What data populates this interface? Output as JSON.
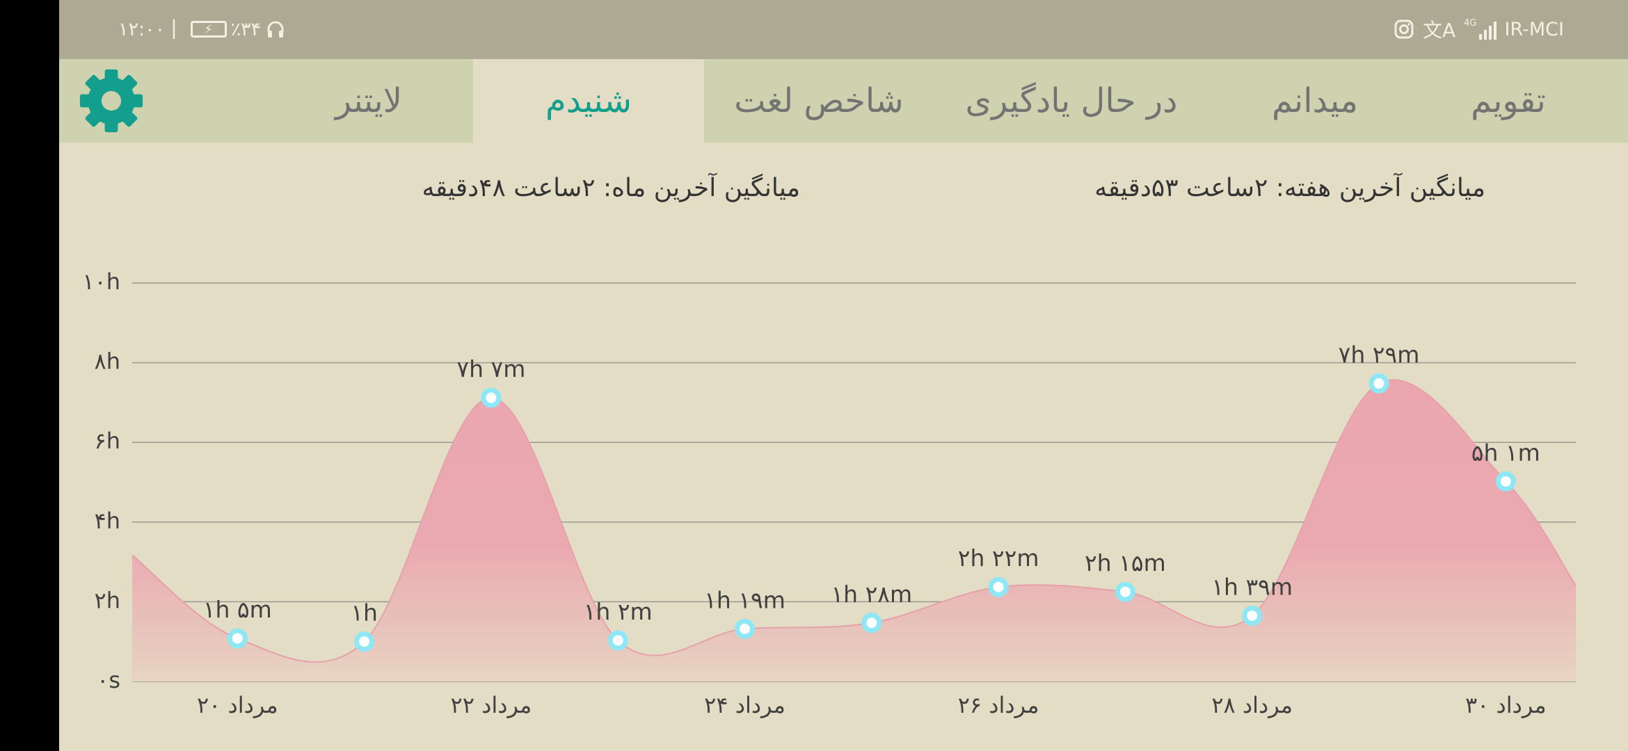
{
  "status_bar": {
    "time": "۱۲:۰۰",
    "battery": "٪۳۴",
    "carrier": "IR-MCI",
    "network": "4G",
    "icons": [
      "headphones-icon",
      "battery-charging-icon",
      "instagram-icon",
      "translate-icon",
      "signal-icon"
    ]
  },
  "tabs": [
    {
      "id": "calendar",
      "label": "تقویم"
    },
    {
      "id": "know",
      "label": "میدانم"
    },
    {
      "id": "learning",
      "label": "در حال یادگیری"
    },
    {
      "id": "word-index",
      "label": "شاخص لغت"
    },
    {
      "id": "listened",
      "label": "شنیدم",
      "active": true
    },
    {
      "id": "lightner",
      "label": "لایتنر"
    }
  ],
  "settings_icon": "gear-icon",
  "colors": {
    "accent": "#149e8e",
    "status_bar_bg": "#aea992",
    "tab_bar_bg": "#cfd2ae",
    "page_bg": "#e3ddc6",
    "area_fill": "#eca6b0",
    "point_color": "#8ee7f4"
  },
  "averages": {
    "week": "میانگین آخرین هفته: ۲ساعت   ۵۳دقیقه",
    "month": "میانگین آخرین ماه: ۲ساعت   ۴۸دقیقه"
  },
  "chart_data": {
    "type": "area",
    "y_unit": "hours",
    "ylim": [
      0,
      10
    ],
    "yticks": [
      {
        "value": 0,
        "label": "۰s"
      },
      {
        "value": 2,
        "label": "۲h"
      },
      {
        "value": 4,
        "label": "۴h"
      },
      {
        "value": 6,
        "label": "۶h"
      },
      {
        "value": 8,
        "label": "۸h"
      },
      {
        "value": 10,
        "label": "۱۰h"
      }
    ],
    "x_labels": [
      "۲۰ مرداد",
      "۲۲ مرداد",
      "۲۴ مرداد",
      "۲۶ مرداد",
      "۲۸ مرداد",
      "۳۰ مرداد"
    ],
    "x_label_days": [
      20,
      22,
      24,
      26,
      28,
      30
    ],
    "grid": true,
    "points": [
      {
        "day": 20,
        "value": 1.08,
        "label": "۱h ۵m"
      },
      {
        "day": 21,
        "value": 1.0,
        "label": "۱h"
      },
      {
        "day": 22,
        "value": 7.12,
        "label": "۷h ۷m"
      },
      {
        "day": 23,
        "value": 1.03,
        "label": "۱h ۲m"
      },
      {
        "day": 24,
        "value": 1.32,
        "label": "۱h ۱۹m"
      },
      {
        "day": 25,
        "value": 1.47,
        "label": "۱h ۲۸m"
      },
      {
        "day": 26,
        "value": 2.37,
        "label": "۲h ۲۲m"
      },
      {
        "day": 27,
        "value": 2.25,
        "label": "۲h ۱۵m"
      },
      {
        "day": 28,
        "value": 1.65,
        "label": "۱h ۳۹m"
      },
      {
        "day": 29,
        "value": 7.48,
        "label": "۷h ۲۹m"
      },
      {
        "day": 30,
        "value": 5.02,
        "label": "۵h ۱m"
      }
    ]
  }
}
